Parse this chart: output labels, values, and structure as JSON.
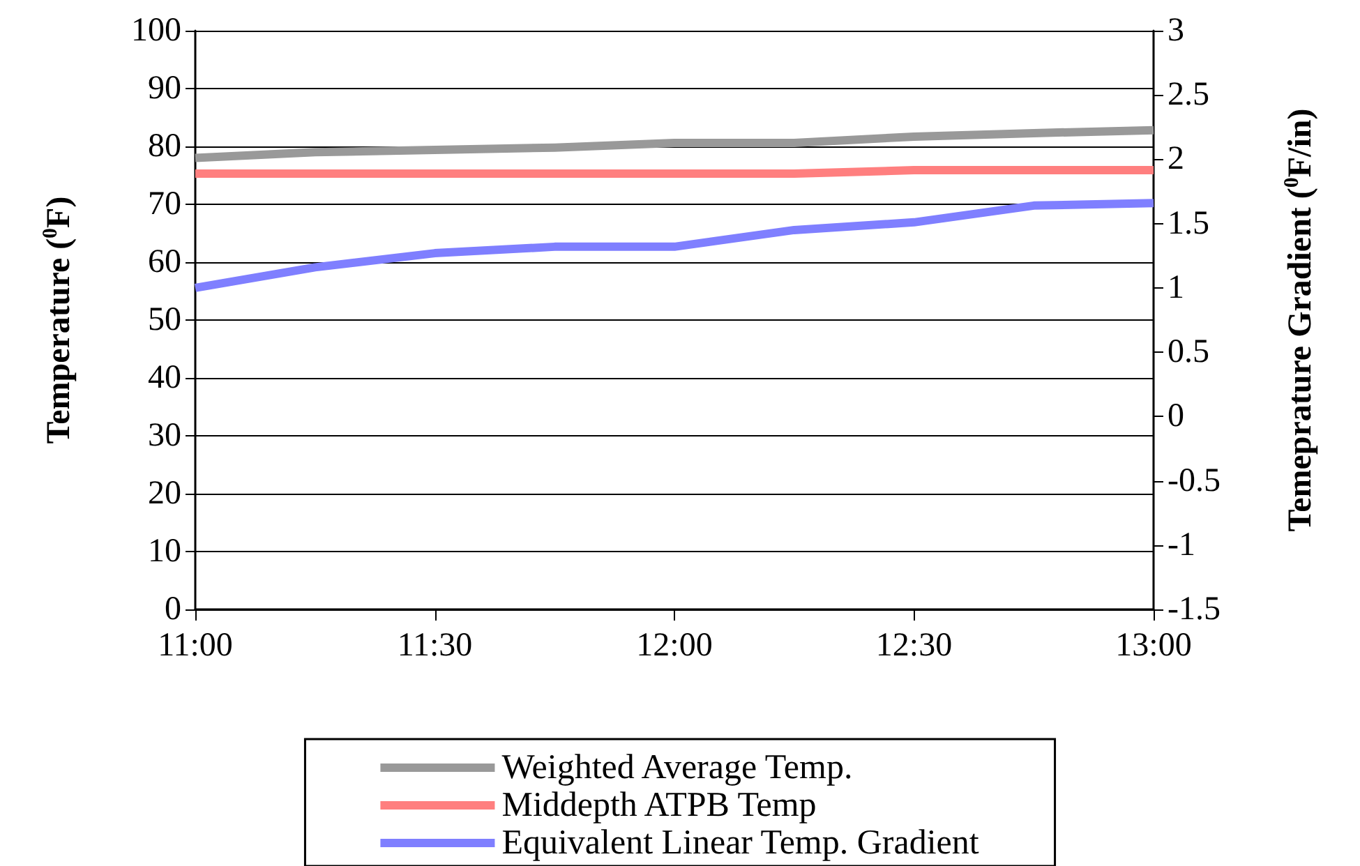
{
  "chart_data": {
    "type": "line",
    "xlabel": null,
    "ylabel": "Temperature ($^{0}$F)",
    "y2label": "Temeprature Gradient ($^{0}$F/in)",
    "x": [
      11,
      11.25,
      11.5,
      11.75,
      12,
      12.25,
      12.5,
      12.75,
      13
    ],
    "series": [
      {
        "name": "Weighted Average Temp.",
        "color": "#999999",
        "values": [
          78.0,
          79.0,
          79.4,
          79.8,
          80.6,
          80.6,
          81.7,
          82.3,
          82.8
        ]
      },
      {
        "name": "Middepth ATPB Temp",
        "color": "#ff7f7f",
        "values": [
          75.3,
          75.3,
          75.3,
          75.3,
          75.3,
          75.3,
          75.9,
          75.9,
          75.9
        ]
      },
      {
        "name": "Equivalent Linear Temp. Gradient",
        "color": "#7f7fff",
        "axis": "y2",
        "values": [
          1.0,
          1.16,
          1.27,
          1.32,
          1.32,
          1.45,
          1.51,
          1.64,
          1.66
        ]
      }
    ],
    "xlim": [
      11,
      13
    ],
    "xticks": [
      {
        "value": 11,
        "label": "11:00"
      },
      {
        "value": 11.5,
        "label": "11:30"
      },
      {
        "value": 12,
        "label": "12:00"
      },
      {
        "value": 12.5,
        "label": "12:30"
      },
      {
        "value": 13,
        "label": "13:00"
      }
    ],
    "ylim": [
      0,
      100
    ],
    "yticks": [
      0,
      10,
      20,
      30,
      40,
      50,
      60,
      70,
      80,
      90,
      100
    ],
    "y2lim": [
      -1.5,
      3
    ],
    "y2ticks": [
      -1.5,
      -1,
      -0.5,
      0,
      0.5,
      1,
      1.5,
      2,
      2.5,
      3
    ],
    "grid": "y",
    "legend": "bottom",
    "marker": "none",
    "line_style": "solid"
  }
}
